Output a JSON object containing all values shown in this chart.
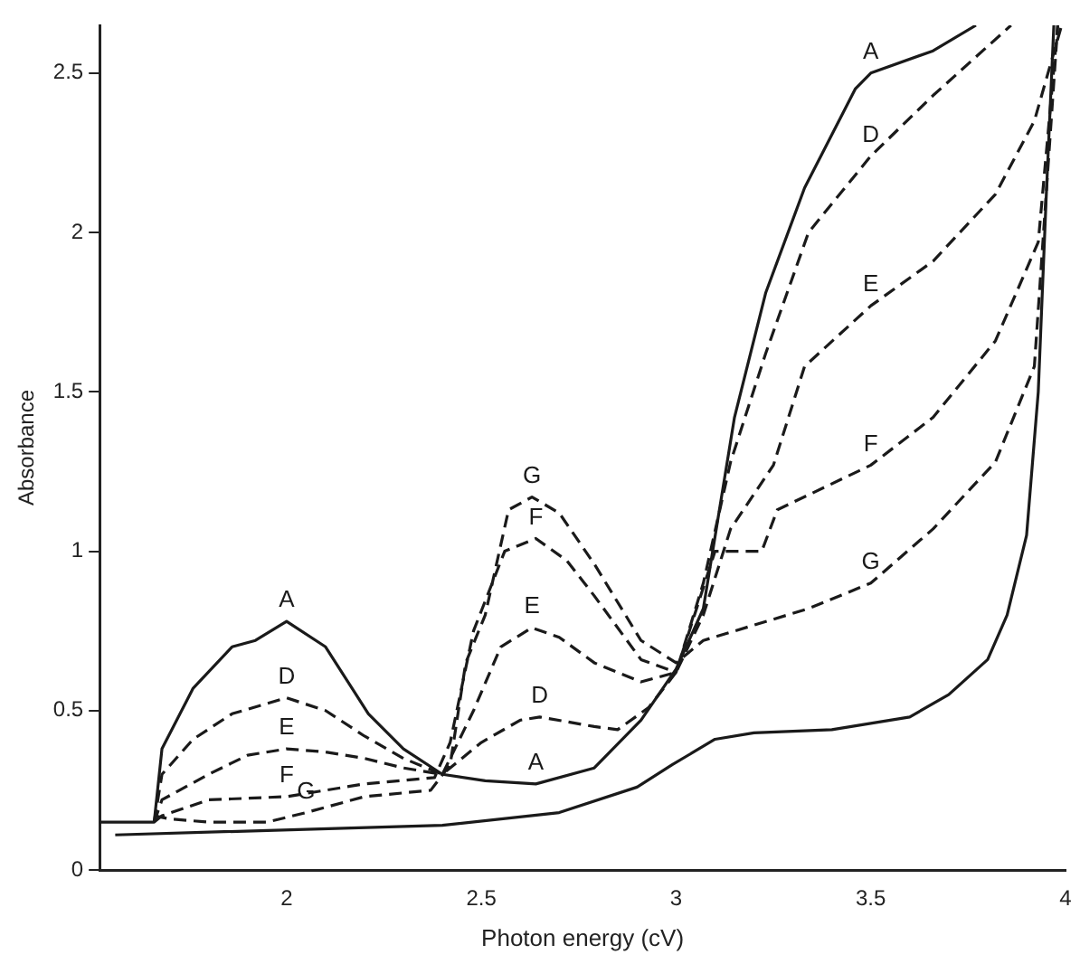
{
  "chart_data": {
    "type": "line",
    "xlabel": "Photon energy (cV)",
    "ylabel": "Absorbance",
    "xlim": [
      1.52,
      4
    ],
    "ylim": [
      0,
      2.65
    ],
    "xticks": [
      2,
      2.5,
      3,
      3.5,
      4
    ],
    "yticks": [
      0,
      0.5,
      1,
      1.5,
      2,
      2.5
    ],
    "series": [
      {
        "color": "#1a1a1a",
        "line_style": "solid",
        "x": [
          1.52,
          1.66,
          1.68,
          1.76,
          1.86,
          1.92,
          2.0,
          2.1,
          2.21,
          2.3,
          2.4,
          2.51,
          2.64,
          2.79,
          2.91,
          3.0,
          3.07,
          3.15,
          3.23,
          3.33,
          3.46,
          3.5,
          3.66,
          3.77
        ],
        "values": [
          0.15,
          0.15,
          0.38,
          0.57,
          0.7,
          0.72,
          0.78,
          0.7,
          0.49,
          0.38,
          0.3,
          0.28,
          0.27,
          0.32,
          0.47,
          0.63,
          0.82,
          1.42,
          1.81,
          2.14,
          2.45,
          2.5,
          2.57,
          2.65
        ]
      },
      {
        "color": "#1a1a1a",
        "line_style": "dashed",
        "x": [
          1.66,
          1.68,
          1.76,
          1.86,
          2.0,
          2.1,
          2.2,
          2.3,
          2.4,
          2.5,
          2.6,
          2.65,
          2.79,
          2.85,
          2.93,
          3.0,
          3.07,
          3.14,
          3.23,
          3.34,
          3.5,
          3.66,
          3.86
        ],
        "values": [
          0.15,
          0.3,
          0.41,
          0.49,
          0.54,
          0.5,
          0.42,
          0.35,
          0.3,
          0.4,
          0.47,
          0.48,
          0.45,
          0.44,
          0.51,
          0.62,
          0.9,
          1.28,
          1.62,
          2.0,
          2.24,
          2.43,
          2.65
        ]
      },
      {
        "color": "#1a1a1a",
        "line_style": "dashed",
        "x": [
          1.66,
          1.68,
          1.8,
          1.9,
          2.0,
          2.1,
          2.2,
          2.3,
          2.4,
          2.48,
          2.55,
          2.63,
          2.7,
          2.79,
          2.91,
          3.0,
          3.07,
          3.14,
          3.25,
          3.33,
          3.5,
          3.66,
          3.82,
          3.92,
          3.99
        ],
        "values": [
          0.15,
          0.22,
          0.3,
          0.36,
          0.38,
          0.37,
          0.35,
          0.32,
          0.3,
          0.5,
          0.7,
          0.76,
          0.73,
          0.65,
          0.59,
          0.62,
          0.8,
          1.07,
          1.27,
          1.58,
          1.77,
          1.91,
          2.12,
          2.35,
          2.65
        ]
      },
      {
        "color": "#1a1a1a",
        "line_style": "dashed",
        "x": [
          1.66,
          1.68,
          1.8,
          2.0,
          2.2,
          2.38,
          2.42,
          2.48,
          2.56,
          2.64,
          2.72,
          2.79,
          2.91,
          3.0,
          3.1,
          3.22,
          3.26,
          3.5,
          3.66,
          3.82,
          3.93,
          3.98
        ],
        "values": [
          0.15,
          0.17,
          0.22,
          0.23,
          0.27,
          0.29,
          0.4,
          0.75,
          1.0,
          1.04,
          0.97,
          0.86,
          0.66,
          0.62,
          1.0,
          1.0,
          1.13,
          1.27,
          1.42,
          1.66,
          1.97,
          2.65
        ]
      },
      {
        "color": "#1a1a1a",
        "line_style": "dashed",
        "x": [
          1.66,
          1.7,
          1.8,
          1.95,
          2.05,
          2.2,
          2.37,
          2.42,
          2.46,
          2.51,
          2.57,
          2.63,
          2.7,
          2.79,
          2.91,
          3.0,
          3.07,
          3.34,
          3.5,
          3.66,
          3.82,
          3.92,
          3.98
        ],
        "values": [
          0.17,
          0.16,
          0.15,
          0.15,
          0.18,
          0.23,
          0.25,
          0.33,
          0.65,
          0.8,
          1.13,
          1.17,
          1.12,
          0.96,
          0.72,
          0.65,
          0.72,
          0.82,
          0.9,
          1.07,
          1.28,
          1.58,
          2.65
        ]
      },
      {
        "color": "#1a1a1a",
        "line_style": "solid",
        "x": [
          1.56,
          2.4,
          2.7,
          2.9,
          2.99,
          3.1,
          3.2,
          3.4,
          3.6,
          3.7,
          3.8,
          3.85,
          3.9,
          3.93,
          3.95,
          3.97
        ],
        "values": [
          0.11,
          0.14,
          0.18,
          0.26,
          0.33,
          0.41,
          0.43,
          0.44,
          0.48,
          0.55,
          0.66,
          0.8,
          1.05,
          1.5,
          2.1,
          2.65
        ]
      }
    ],
    "annotations": [
      {
        "text": "A",
        "x": 2.0,
        "y": 0.78
      },
      {
        "text": "D",
        "x": 2.0,
        "y": 0.54
      },
      {
        "text": "E",
        "x": 2.0,
        "y": 0.38
      },
      {
        "text": "F",
        "x": 2.0,
        "y": 0.23
      },
      {
        "text": "G",
        "x": 2.05,
        "y": 0.18
      },
      {
        "text": "G",
        "x": 2.63,
        "y": 1.17
      },
      {
        "text": "F",
        "x": 2.64,
        "y": 1.04
      },
      {
        "text": "E",
        "x": 2.63,
        "y": 0.76
      },
      {
        "text": "D",
        "x": 2.65,
        "y": 0.48
      },
      {
        "text": "A",
        "x": 2.64,
        "y": 0.27
      },
      {
        "text": "A",
        "x": 3.5,
        "y": 2.5
      },
      {
        "text": "D",
        "x": 3.5,
        "y": 2.24
      },
      {
        "text": "E",
        "x": 3.5,
        "y": 1.77
      },
      {
        "text": "F",
        "x": 3.5,
        "y": 1.27
      },
      {
        "text": "G",
        "x": 3.5,
        "y": 0.9
      }
    ]
  }
}
